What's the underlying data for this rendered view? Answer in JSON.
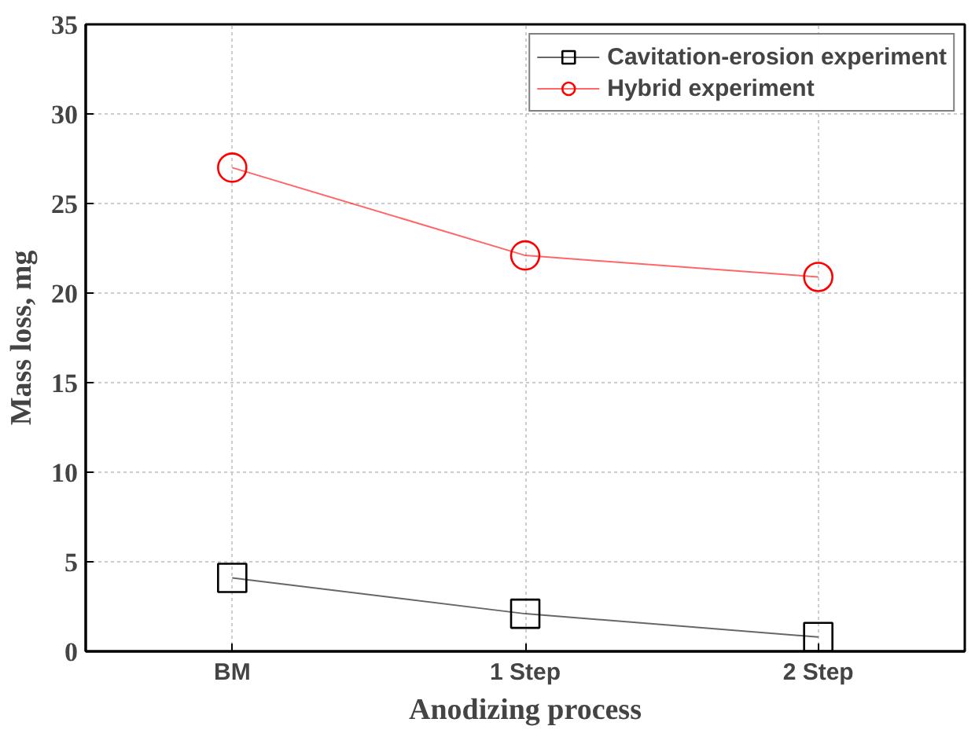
{
  "chart_data": {
    "type": "line",
    "xlabel": "Anodizing process",
    "ylabel": "Mass loss, mg",
    "categories": [
      "BM",
      "1 Step",
      "2 Step"
    ],
    "series": [
      {
        "name": "Cavitation-erosion experiment",
        "color": "#000000",
        "marker": "square",
        "values": [
          4.1,
          2.1,
          0.8
        ]
      },
      {
        "name": "Hybrid experiment",
        "color": "#ff0000",
        "marker": "circle",
        "values": [
          27.0,
          22.1,
          20.9
        ]
      }
    ],
    "ylim": [
      0,
      35
    ],
    "yticks": [
      0,
      5,
      10,
      15,
      20,
      25,
      30,
      35
    ],
    "grid": true,
    "legend": "top right",
    "line_style": "solid"
  }
}
